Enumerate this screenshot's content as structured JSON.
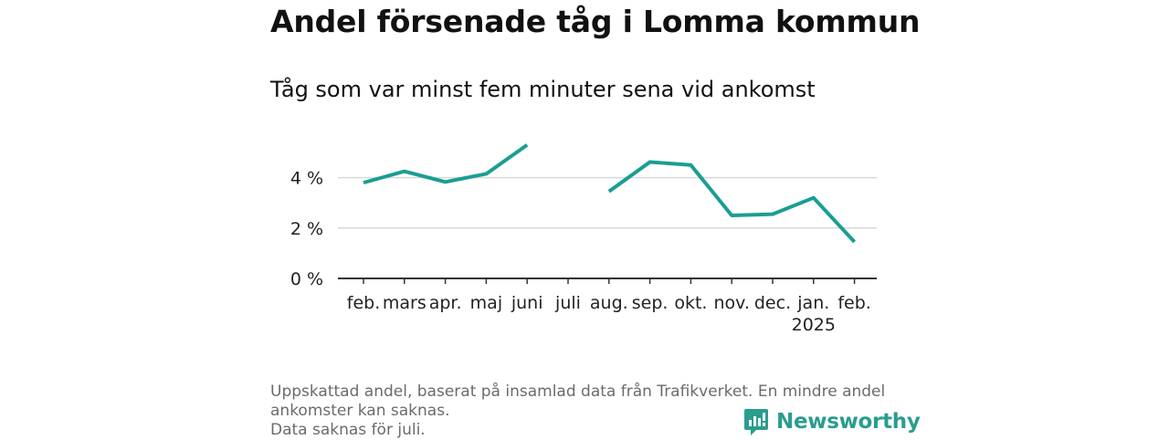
{
  "header": {
    "title": "Andel försenade tåg i Lomma kommun",
    "subtitle": "Tåg som var minst fem minuter sena vid ankomst"
  },
  "chart_data": {
    "type": "line",
    "title": "Andel försenade tåg i Lomma kommun",
    "subtitle": "Tåg som var minst fem minuter sena vid ankomst",
    "xlabel": "",
    "ylabel": "",
    "categories": [
      "feb.",
      "mars",
      "apr.",
      "maj",
      "juni",
      "juli",
      "aug.",
      "sep.",
      "okt.",
      "nov.",
      "dec.",
      "jan.",
      "feb."
    ],
    "category_sublabels": [
      "",
      "",
      "",
      "",
      "",
      "",
      "",
      "",
      "",
      "",
      "",
      "2025",
      ""
    ],
    "series": [
      {
        "values": [
          3.8,
          4.25,
          3.83,
          4.15,
          5.3,
          null,
          3.45,
          4.62,
          4.5,
          2.5,
          2.55,
          3.2,
          1.45
        ]
      }
    ],
    "y_ticks": [
      0,
      2,
      4
    ],
    "y_tick_labels": [
      "0 %",
      "2 %",
      "4 %"
    ],
    "ylim": [
      0,
      5.6
    ],
    "grid": true,
    "line_color": "#1a9e93"
  },
  "footer": {
    "note_line1": "Uppskattad andel, baserat på insamlad data från Trafikverket. En mindre andel",
    "note_line2": "ankomster kan saknas.",
    "note_line3": "Data saknas för juli."
  },
  "brand": {
    "name": "Newsworthy",
    "icon": "newsworthy-logo-icon",
    "color": "#2a9d8f"
  }
}
